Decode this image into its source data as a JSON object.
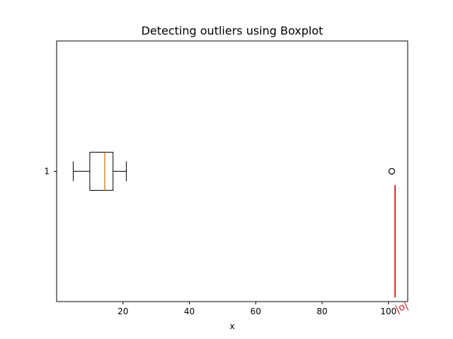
{
  "chart_data": {
    "type": "boxplot",
    "title": "Detecting outliers using Boxplot",
    "xlabel": "x",
    "ylabel": "",
    "orientation": "horizontal",
    "xlim": [
      0,
      105.8
    ],
    "x_ticks": [
      20,
      40,
      60,
      80,
      100
    ],
    "y_ticks": [
      "1"
    ],
    "grid": false,
    "box": {
      "category": "1",
      "whisker_low": 5,
      "q1": 10,
      "median": 14.5,
      "q3": 17,
      "whisker_high": 21,
      "outliers": [
        101
      ]
    },
    "annotation": {
      "text": "|o|",
      "x": 102
    },
    "colors": {
      "box": "#000000",
      "median": "#ff7f0e",
      "annotation": "#d62728"
    }
  }
}
